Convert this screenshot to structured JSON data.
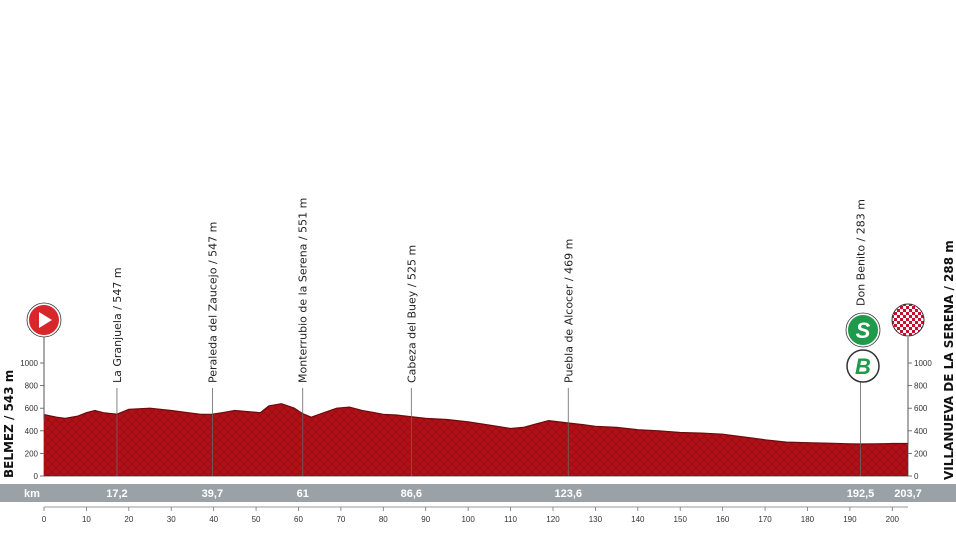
{
  "chart_data": {
    "type": "area",
    "title": "",
    "xlabel": "km",
    "ylabel": "",
    "xlim": [
      0,
      203.7
    ],
    "ylim": [
      0,
      1000
    ],
    "y_ticks": [
      0,
      200,
      400,
      600,
      800,
      1000
    ],
    "x_ticks": [
      0,
      10,
      20,
      30,
      40,
      50,
      60,
      70,
      80,
      90,
      100,
      110,
      120,
      130,
      140,
      150,
      160,
      170,
      180,
      190,
      200
    ],
    "grid": false,
    "profile": {
      "x": [
        0,
        3,
        5,
        8,
        10,
        12,
        14,
        17.2,
        20,
        25,
        30,
        34,
        37,
        39.7,
        42,
        45,
        48,
        51,
        53,
        56,
        59,
        61,
        63,
        66,
        69,
        72,
        75,
        78,
        80,
        83,
        86.6,
        90,
        95,
        100,
        105,
        110,
        113,
        116,
        119,
        123.6,
        127,
        130,
        135,
        140,
        145,
        150,
        155,
        160,
        165,
        170,
        175,
        180,
        185,
        190,
        192.5,
        196,
        200,
        203.7
      ],
      "y": [
        543,
        520,
        510,
        530,
        560,
        580,
        560,
        547,
        590,
        600,
        580,
        560,
        545,
        547,
        560,
        580,
        570,
        560,
        620,
        640,
        600,
        551,
        520,
        560,
        600,
        610,
        580,
        560,
        545,
        540,
        525,
        510,
        500,
        480,
        450,
        420,
        430,
        460,
        490,
        469,
        455,
        440,
        430,
        410,
        400,
        385,
        380,
        370,
        345,
        320,
        300,
        295,
        290,
        285,
        283,
        285,
        288,
        288
      ]
    },
    "waypoints": [
      {
        "label": "La Granjuela / 547 m",
        "km": 17.2,
        "km_label": "17,2"
      },
      {
        "label": "Peraleda del Zaucejo / 547 m",
        "km": 39.7,
        "km_label": "39,7"
      },
      {
        "label": "Monterrubio de la Serena / 551 m",
        "km": 61,
        "km_label": "61"
      },
      {
        "label": "Cabeza del Buey / 525 m",
        "km": 86.6,
        "km_label": "86,6"
      },
      {
        "label": "Puebla de Alcocer / 469 m",
        "km": 123.6,
        "km_label": "123,6"
      },
      {
        "label": "Don Benito / 283 m",
        "km": 192.5,
        "km_label": "192,5"
      }
    ],
    "finish_km_label": "203,7",
    "start_label": "BELMEZ / 543 m",
    "finish_label": "VILLANUEVA DE LA SERENA / 288 m",
    "badges": {
      "sprint": "S",
      "bonus": "B"
    },
    "colors": {
      "profile": "#b01016",
      "profile_dark": "#6e0a0d",
      "start": "#d9262a",
      "sprint": "#1f9a4a",
      "km_band": "#9aa2a8"
    }
  }
}
